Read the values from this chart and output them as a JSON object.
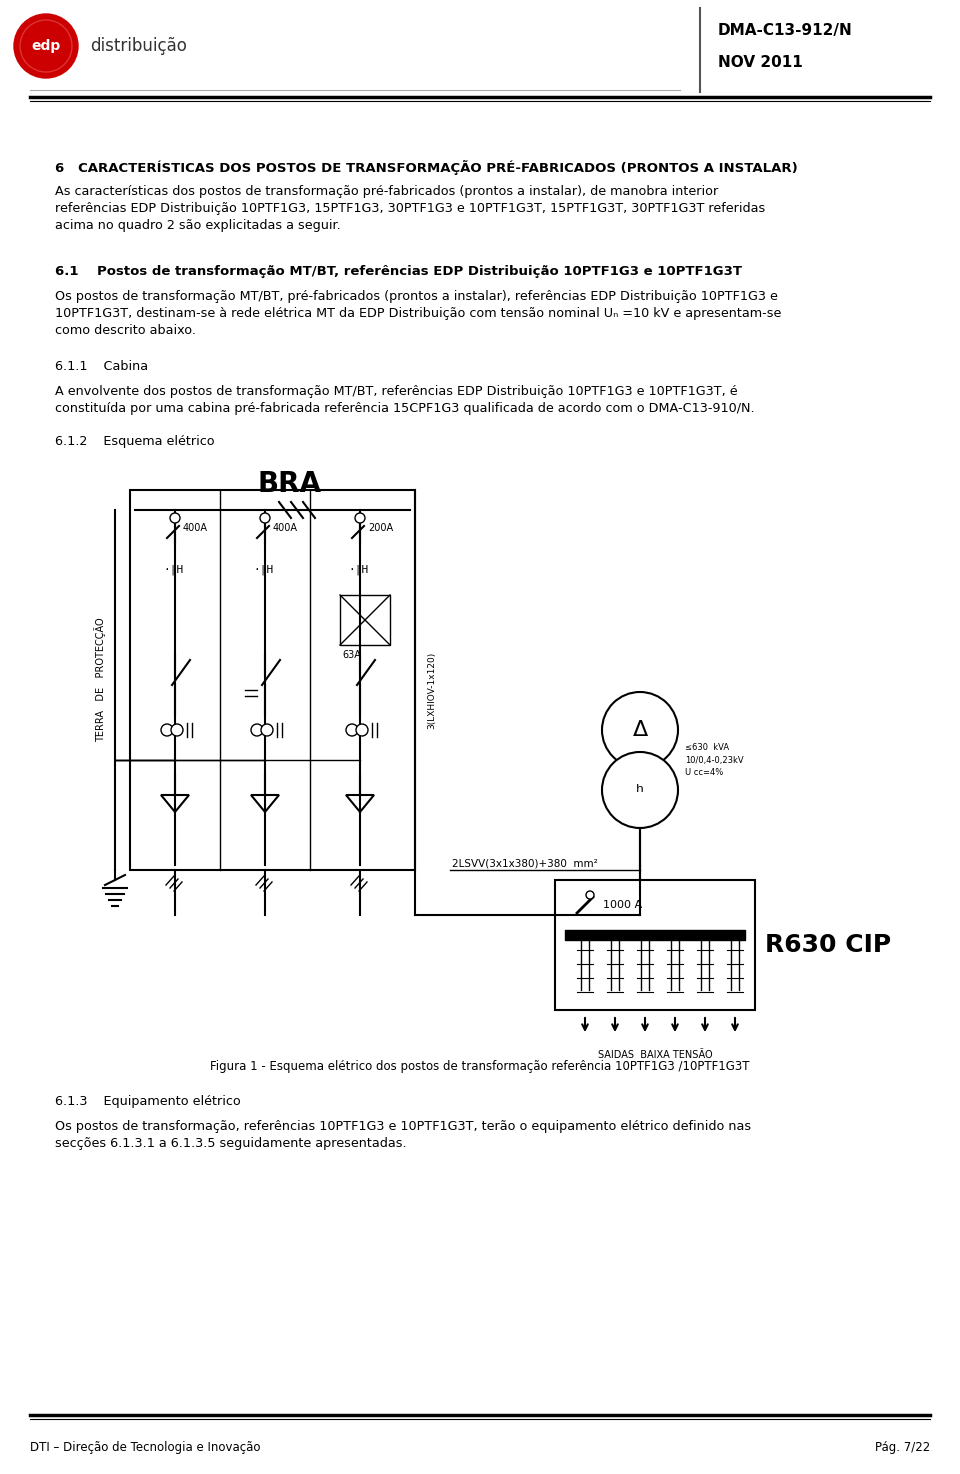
{
  "bg_color": "#ffffff",
  "header": {
    "logo_text": "edp",
    "logo_subtitle": "distribuição",
    "doc_ref": "DMA-C13-912/N",
    "doc_date": "NOV 2011"
  },
  "footer": {
    "left": "DTI – Direção de Tecnologia e Inovação",
    "right": "Pág. 7/22"
  },
  "section6_title": "6   CARACTERÍSTICAS DOS POSTOS DE TRANSFORMAÇÃO PRÉ-FABRICADOS (PRONTOS A INSTALAR)",
  "section6_body_lines": [
    "As características dos postos de transformação pré-fabricados (prontos a instalar), de manobra interior",
    "referências EDP Distribuição 10PTF1G3, 15PTF1G3, 30PTF1G3 e 10PTF1G3T, 15PTF1G3T, 30PTF1G3T referidas",
    "acima no quadro 2 são explicitadas a seguir."
  ],
  "section61_title": "6.1    Postos de transformação MT/BT, referências EDP Distribuição 10PTF1G3 e 10PTF1G3T",
  "section61_body_lines": [
    "Os postos de transformação MT/BT, pré-fabricados (prontos a instalar), referências EDP Distribuição 10PTF1G3 e",
    "10PTF1G3T, destinam-se à rede elétrica MT da EDP Distribuição com tensão nominal Uₙ =10 kV e apresentam-se",
    "como descrito abaixo."
  ],
  "section611_title": "6.1.1    Cabina",
  "section611_body_lines": [
    "A envolvente dos postos de transformação MT/BT, referências EDP Distribuição 10PTF1G3 e 10PTF1G3T, é",
    "constituída por uma cabina pré-fabricada referência 15CPF1G3 qualificada de acordo com o DMA-C13-910/N."
  ],
  "section612_title": "6.1.2    Esquema elétrico",
  "figure_caption": "Figura 1 - Esquema elétrico dos postos de transformação referência 10PTF1G3 /10PTF1G3T",
  "section613_title": "6.1.3    Equipamento elétrico",
  "section613_body_lines": [
    "Os postos de transformação, referências 10PTF1G3 e 10PTF1G3T, terão o equipamento elétrico definido nas",
    "secções 6.1.3.1 a 6.1.3.5 seguidamente apresentadas."
  ],
  "diag": {
    "bra_label": "BRA",
    "terra_label": "TERRA   DE   PROTECÇÃO",
    "label_400A_1": "400A",
    "label_400A_2": "400A",
    "label_200A": "200A",
    "label_63A": "63A",
    "cable_label": "3(LXHIOV-1x120)",
    "cable_label2": "2LSVV(3x1x380)+380  mm²",
    "trafo_label": "≤630  kVA\n10/0,4-0,23kV\nU cc=4%",
    "delta_sym": "Δ",
    "star_sym": "ʰ",
    "fuse_label": "1000 A",
    "r630_label": "R630 CIP",
    "saidas_label": "SAIDAS  BAIXA TENSÃO"
  }
}
